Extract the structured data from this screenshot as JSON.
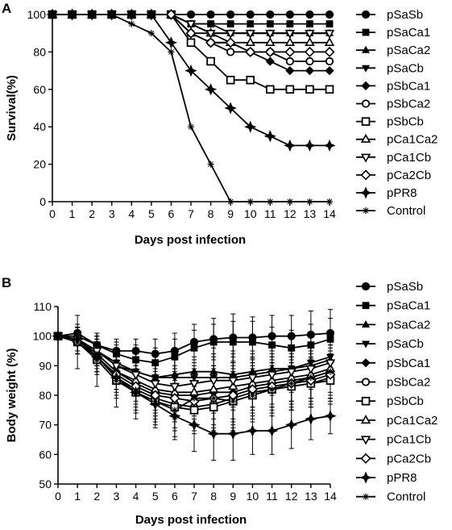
{
  "chart_data": [
    {
      "type": "line",
      "panel_label": "A",
      "xlabel": "Days post infection",
      "ylabel": "Survival(%)",
      "x": [
        0,
        1,
        2,
        3,
        4,
        5,
        6,
        7,
        8,
        9,
        10,
        11,
        12,
        13,
        14
      ],
      "xlim": [
        0,
        14
      ],
      "ylim": [
        0,
        100
      ],
      "yticks": [
        0,
        20,
        40,
        60,
        80,
        100
      ],
      "grid": false,
      "legend_position": "right",
      "series": [
        {
          "name": "pSaSb",
          "marker": "circle",
          "values": [
            100,
            100,
            100,
            100,
            100,
            100,
            100,
            100,
            100,
            100,
            100,
            100,
            100,
            100,
            100
          ]
        },
        {
          "name": "pSaCa1",
          "marker": "square",
          "values": [
            100,
            100,
            100,
            100,
            100,
            100,
            100,
            95,
            95,
            95,
            95,
            95,
            95,
            95,
            95
          ]
        },
        {
          "name": "pSaCa2",
          "marker": "triangle-up",
          "values": [
            100,
            100,
            100,
            100,
            100,
            100,
            100,
            95,
            90,
            90,
            90,
            90,
            90,
            90,
            90
          ]
        },
        {
          "name": "pSaCb",
          "marker": "triangle-down",
          "values": [
            100,
            100,
            100,
            100,
            100,
            100,
            100,
            95,
            95,
            90,
            90,
            90,
            90,
            90,
            90
          ]
        },
        {
          "name": "pSbCa1",
          "marker": "diamond",
          "values": [
            100,
            100,
            100,
            100,
            100,
            100,
            100,
            90,
            85,
            85,
            80,
            75,
            70,
            70,
            70
          ]
        },
        {
          "name": "pSbCa2",
          "marker": "circle-open",
          "values": [
            100,
            100,
            100,
            100,
            100,
            100,
            100,
            90,
            85,
            80,
            80,
            80,
            75,
            75,
            75
          ]
        },
        {
          "name": "pSbCb",
          "marker": "square-open",
          "values": [
            100,
            100,
            100,
            100,
            100,
            100,
            100,
            85,
            75,
            65,
            65,
            60,
            60,
            60,
            60
          ]
        },
        {
          "name": "pCa1Ca2",
          "marker": "triangle-up-open",
          "values": [
            100,
            100,
            100,
            100,
            100,
            100,
            100,
            90,
            90,
            85,
            85,
            85,
            85,
            85,
            85
          ]
        },
        {
          "name": "pCa1Cb",
          "marker": "triangle-down-open",
          "values": [
            100,
            100,
            100,
            100,
            100,
            100,
            100,
            95,
            90,
            90,
            90,
            90,
            90,
            90,
            90
          ]
        },
        {
          "name": "pCa2Cb",
          "marker": "diamond-open",
          "values": [
            100,
            100,
            100,
            100,
            100,
            100,
            100,
            90,
            85,
            85,
            80,
            80,
            80,
            80,
            80
          ]
        },
        {
          "name": "pPR8",
          "marker": "star",
          "values": [
            100,
            100,
            100,
            100,
            100,
            100,
            85,
            70,
            60,
            50,
            40,
            35,
            30,
            30,
            30
          ]
        },
        {
          "name": "Control",
          "marker": "asterisk",
          "values": [
            100,
            100,
            100,
            100,
            95,
            90,
            80,
            40,
            20,
            0,
            0,
            0,
            0,
            0,
            0
          ]
        }
      ]
    },
    {
      "type": "line",
      "panel_label": "B",
      "xlabel": "Days post infection",
      "ylabel": "Body weight (%)",
      "x": [
        0,
        1,
        2,
        3,
        4,
        5,
        6,
        7,
        8,
        9,
        10,
        11,
        12,
        13,
        14
      ],
      "xlim": [
        0,
        14
      ],
      "ylim": [
        50,
        110
      ],
      "yticks": [
        50,
        60,
        70,
        80,
        90,
        100,
        110
      ],
      "grid": false,
      "legend_position": "right",
      "error_bars": true,
      "series": [
        {
          "name": "pSaSb",
          "marker": "circle",
          "values": [
            100,
            101,
            97,
            95,
            95,
            94,
            95,
            98,
            99,
            99.5,
            99.5,
            100,
            100,
            100.5,
            101
          ],
          "err": [
            0,
            3,
            4,
            4,
            4,
            5,
            6,
            6,
            7,
            8,
            7,
            7,
            7,
            8,
            8
          ]
        },
        {
          "name": "pSaCa1",
          "marker": "square",
          "values": [
            100,
            100,
            97,
            94,
            92,
            91,
            93,
            96,
            98,
            98,
            98,
            97,
            96,
            97,
            99
          ],
          "err": [
            0,
            3,
            4,
            4,
            5,
            5,
            6,
            6,
            6,
            7,
            7,
            6,
            6,
            7,
            7
          ]
        },
        {
          "name": "pSaCa2",
          "marker": "triangle-up",
          "values": [
            100,
            99,
            95,
            90,
            88,
            86,
            87,
            88,
            88,
            87,
            88,
            89,
            89,
            90,
            92
          ],
          "err": [
            0,
            4,
            5,
            6,
            6,
            6,
            7,
            7,
            8,
            8,
            7,
            7,
            7,
            7,
            7
          ]
        },
        {
          "name": "pSaCb",
          "marker": "triangle-down",
          "values": [
            100,
            99,
            95,
            91,
            88,
            86,
            86,
            86,
            86,
            86,
            87,
            88,
            89,
            91,
            93
          ],
          "err": [
            0,
            4,
            5,
            6,
            6,
            6,
            7,
            7,
            8,
            8,
            7,
            7,
            7,
            7,
            7
          ]
        },
        {
          "name": "pSbCa1",
          "marker": "diamond",
          "values": [
            100,
            99,
            94,
            88,
            84,
            81,
            80,
            80,
            81,
            81,
            83,
            84,
            85,
            86,
            88
          ],
          "err": [
            0,
            4,
            5,
            6,
            7,
            7,
            8,
            8,
            9,
            9,
            8,
            8,
            8,
            8,
            8
          ]
        },
        {
          "name": "pSbCa2",
          "marker": "circle-open",
          "values": [
            100,
            98,
            93,
            86,
            82,
            79,
            77,
            76,
            77,
            79,
            81,
            82,
            83,
            84,
            86
          ],
          "err": [
            0,
            4,
            5,
            6,
            7,
            7,
            8,
            8,
            9,
            9,
            8,
            8,
            8,
            8,
            8
          ]
        },
        {
          "name": "pSbCb",
          "marker": "square-open",
          "values": [
            100,
            98,
            92,
            85,
            81,
            78,
            76,
            75,
            76,
            78,
            80,
            82,
            83,
            84,
            85
          ],
          "err": [
            0,
            4,
            5,
            6,
            7,
            7,
            8,
            8,
            9,
            9,
            8,
            8,
            8,
            8,
            8
          ]
        },
        {
          "name": "pCa1Ca2",
          "marker": "triangle-up-open",
          "values": [
            100,
            99,
            94,
            88,
            85,
            82,
            81,
            81,
            82,
            83,
            84,
            85,
            86,
            87,
            89
          ],
          "err": [
            0,
            4,
            5,
            6,
            7,
            7,
            8,
            8,
            8,
            8,
            8,
            8,
            8,
            8,
            8
          ]
        },
        {
          "name": "pCa1Cb",
          "marker": "triangle-down-open",
          "values": [
            100,
            99,
            95,
            90,
            87,
            84,
            83,
            84,
            85,
            85,
            86,
            87,
            88,
            89,
            91
          ],
          "err": [
            0,
            4,
            5,
            6,
            6,
            7,
            7,
            7,
            8,
            8,
            7,
            7,
            7,
            7,
            7
          ]
        },
        {
          "name": "pCa2Cb",
          "marker": "diamond-open",
          "values": [
            100,
            98,
            93,
            87,
            83,
            80,
            79,
            78,
            79,
            80,
            82,
            83,
            84,
            85,
            87
          ],
          "err": [
            0,
            4,
            5,
            6,
            7,
            7,
            8,
            8,
            9,
            9,
            8,
            8,
            8,
            8,
            8
          ]
        },
        {
          "name": "pPR8",
          "marker": "star",
          "values": [
            100,
            99,
            93,
            86,
            81,
            77,
            73,
            70,
            67,
            67,
            68,
            68,
            70,
            72,
            73
          ],
          "err": [
            0,
            4,
            5,
            6,
            7,
            7,
            8,
            9,
            9,
            9,
            8,
            8,
            8,
            7,
            6
          ]
        },
        {
          "name": "Control",
          "marker": "asterisk",
          "values": [
            100,
            98,
            92,
            85,
            81,
            78,
            75,
            79,
            79,
            78,
            80,
            82,
            84,
            86,
            88
          ],
          "err": [
            0,
            9,
            9,
            9,
            9,
            9,
            9,
            9,
            10,
            10,
            9,
            9,
            9,
            9,
            9
          ]
        }
      ]
    }
  ]
}
